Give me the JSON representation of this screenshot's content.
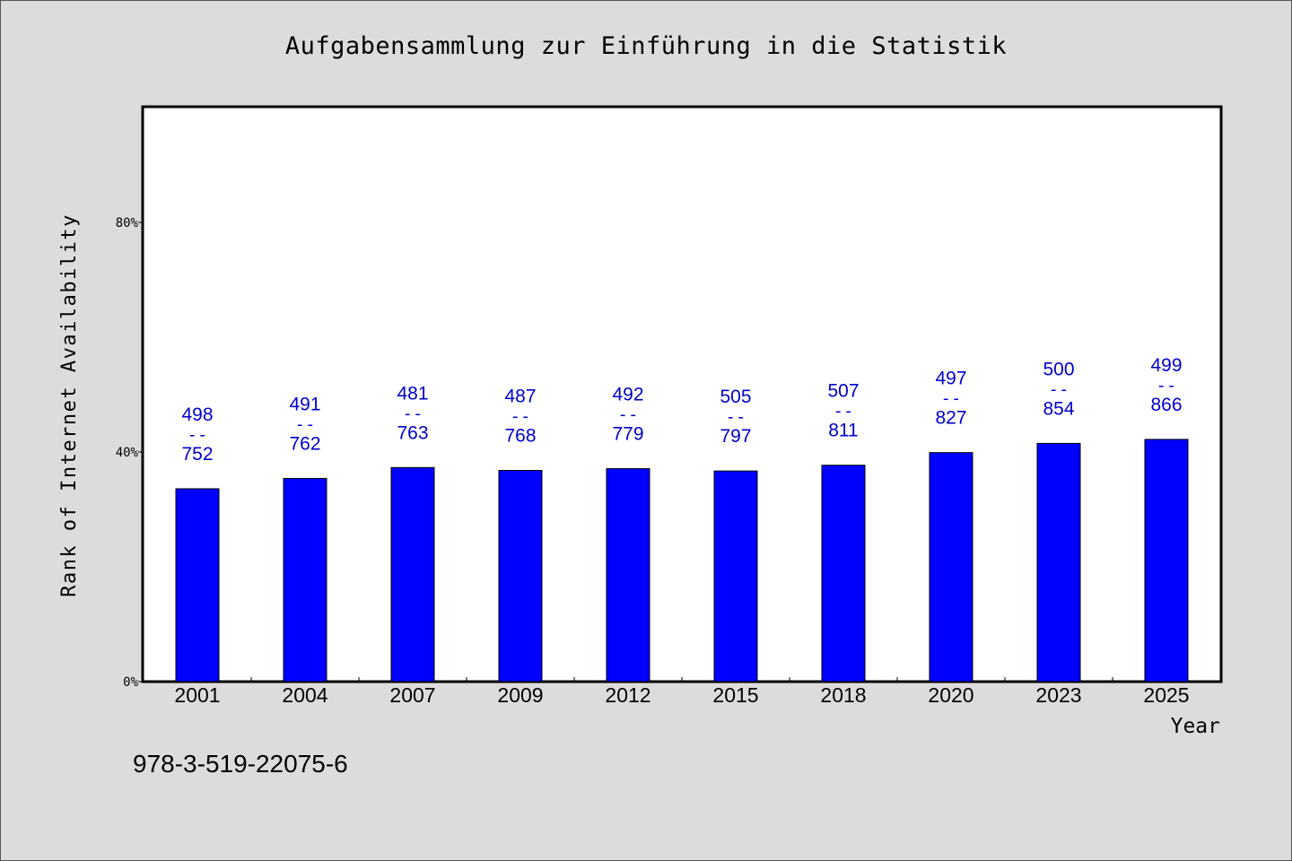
{
  "chart_data": {
    "type": "bar",
    "title": "Aufgabensammlung zur Einführung in die Statistik",
    "xlabel": "Year",
    "ylabel": "Rank of Internet Availability",
    "categories": [
      "2001",
      "2004",
      "2007",
      "2009",
      "2012",
      "2015",
      "2018",
      "2020",
      "2023",
      "2025"
    ],
    "values": [
      33.6,
      35.4,
      37.3,
      36.8,
      37.1,
      36.7,
      37.7,
      39.9,
      41.5,
      42.2
    ],
    "labels_top": [
      "498",
      "491",
      "481",
      "487",
      "492",
      "505",
      "507",
      "497",
      "500",
      "499"
    ],
    "labels_bottom": [
      "752",
      "762",
      "763",
      "768",
      "779",
      "797",
      "811",
      "827",
      "854",
      "866"
    ],
    "label_separator": "--",
    "ylim": [
      0,
      100
    ],
    "yticks": [
      0,
      40,
      80
    ],
    "ytick_labels": [
      "0%",
      "40%",
      "80%"
    ],
    "grid": false,
    "bar_color": "#0000ff",
    "label_color": "#0000cc"
  },
  "footer": {
    "code": "978-3-519-22075-6"
  }
}
